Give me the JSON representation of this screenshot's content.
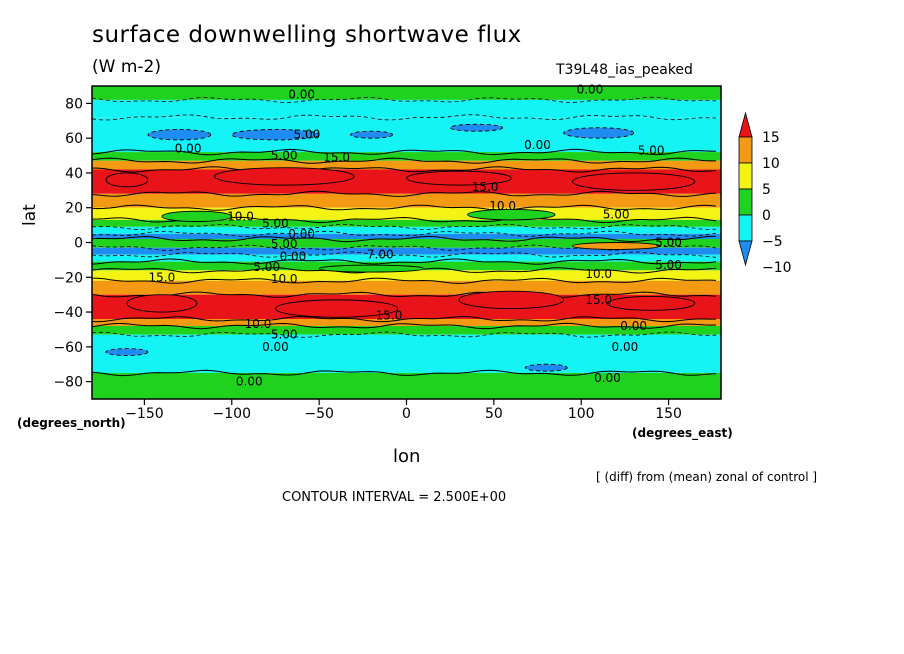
{
  "header": {
    "title": "surface downwelling shortwave flux",
    "units": "(W m-2)",
    "run_name": "T39L48_ias_peaked"
  },
  "footer": {
    "north_units": "(degrees_north)",
    "east_units": "(degrees_east)",
    "diff_note": "[ (diff) from (mean) zonal of control ]",
    "contour_interval": "CONTOUR INTERVAL = 2.500E+00"
  },
  "chart_data": {
    "type": "heatmap",
    "title": "surface downwelling shortwave flux",
    "subtitle": "(W m-2)",
    "xlabel": "lon",
    "ylabel": "lat",
    "xlim": [
      -180,
      180
    ],
    "ylim": [
      -90,
      90
    ],
    "x_ticks": [
      -150,
      -100,
      -50,
      0,
      50,
      100,
      150
    ],
    "x_tick_labels": [
      "−150",
      "−100",
      "−50",
      "0",
      "50",
      "100",
      "150"
    ],
    "y_ticks": [
      80,
      60,
      40,
      20,
      0,
      -20,
      -40,
      -60,
      -80
    ],
    "y_tick_labels": [
      "80",
      "60",
      "40",
      "20",
      "0",
      "−20",
      "−40",
      "−60",
      "−80"
    ],
    "contour_interval": 2.5,
    "colorbar": {
      "levels": [
        15,
        10,
        5,
        0,
        -5,
        -10
      ],
      "level_labels": [
        "15",
        "10",
        "5",
        "0",
        "−5",
        "−10"
      ],
      "colors": [
        "#e8141a",
        "#f49a12",
        "#f4f414",
        "#1ed21e",
        "#14f4f4",
        "#1e8cf0"
      ]
    },
    "colors": {
      "red": "#e8141a",
      "orange": "#f49a12",
      "yellow": "#f4f414",
      "green": "#1ed21e",
      "cyan": "#14f4f4",
      "blue": "#1e8cf0"
    },
    "zonal_bands": [
      {
        "lat_from": 90,
        "lat_to": 82,
        "value": 1
      },
      {
        "lat_from": 82,
        "lat_to": 72,
        "value": -2
      },
      {
        "lat_from": 72,
        "lat_to": 52,
        "value": -4
      },
      {
        "lat_from": 52,
        "lat_to": 47,
        "value": 1
      },
      {
        "lat_from": 47,
        "lat_to": 42,
        "value": 7
      },
      {
        "lat_from": 42,
        "lat_to": 28,
        "value": 12
      },
      {
        "lat_from": 28,
        "lat_to": 20,
        "value": 8
      },
      {
        "lat_from": 20,
        "lat_to": 13,
        "value": 6
      },
      {
        "lat_from": 13,
        "lat_to": 9,
        "value": 1
      },
      {
        "lat_from": 9,
        "lat_to": 5,
        "value": -3
      },
      {
        "lat_from": 5,
        "lat_to": 2,
        "value": -7
      },
      {
        "lat_from": 2,
        "lat_to": -3,
        "value": 1
      },
      {
        "lat_from": -3,
        "lat_to": -7,
        "value": -7
      },
      {
        "lat_from": -7,
        "lat_to": -11,
        "value": -2
      },
      {
        "lat_from": -11,
        "lat_to": -16,
        "value": 1
      },
      {
        "lat_from": -16,
        "lat_to": -22,
        "value": 6
      },
      {
        "lat_from": -22,
        "lat_to": -30,
        "value": 8
      },
      {
        "lat_from": -30,
        "lat_to": -44,
        "value": 12
      },
      {
        "lat_from": -44,
        "lat_to": -48,
        "value": 7
      },
      {
        "lat_from": -48,
        "lat_to": -53,
        "value": 1
      },
      {
        "lat_from": -53,
        "lat_to": -75,
        "value": -3
      },
      {
        "lat_from": -75,
        "lat_to": -90,
        "value": 1
      }
    ],
    "patches": [
      {
        "lon": -130,
        "lat": 62,
        "rx": 18,
        "ry": 3,
        "value": -7
      },
      {
        "lon": -75,
        "lat": 62,
        "rx": 25,
        "ry": 3,
        "value": -7
      },
      {
        "lon": -20,
        "lat": 62,
        "rx": 12,
        "ry": 2,
        "value": -7
      },
      {
        "lon": 40,
        "lat": 66,
        "rx": 15,
        "ry": 2,
        "value": -7
      },
      {
        "lon": 110,
        "lat": 63,
        "rx": 20,
        "ry": 3,
        "value": -7
      },
      {
        "lon": -160,
        "lat": 36,
        "rx": 12,
        "ry": 4,
        "value": 17
      },
      {
        "lon": -70,
        "lat": 38,
        "rx": 40,
        "ry": 5,
        "value": 17
      },
      {
        "lon": 30,
        "lat": 37,
        "rx": 30,
        "ry": 4,
        "value": 17
      },
      {
        "lon": 130,
        "lat": 35,
        "rx": 35,
        "ry": 5,
        "value": 17
      },
      {
        "lon": -120,
        "lat": 15,
        "rx": 20,
        "ry": 3,
        "value": 1
      },
      {
        "lon": 60,
        "lat": 16,
        "rx": 25,
        "ry": 3,
        "value": 1
      },
      {
        "lon": -140,
        "lat": -35,
        "rx": 20,
        "ry": 5,
        "value": 17
      },
      {
        "lon": -40,
        "lat": -38,
        "rx": 35,
        "ry": 5,
        "value": 17
      },
      {
        "lon": 60,
        "lat": -33,
        "rx": 30,
        "ry": 5,
        "value": 17
      },
      {
        "lon": 140,
        "lat": -35,
        "rx": 25,
        "ry": 4,
        "value": 17
      },
      {
        "lon": 120,
        "lat": -2,
        "rx": 25,
        "ry": 2,
        "value": 8
      },
      {
        "lon": -20,
        "lat": -15,
        "rx": 30,
        "ry": 2,
        "value": 1
      },
      {
        "lon": -160,
        "lat": -63,
        "rx": 12,
        "ry": 2,
        "value": -7
      },
      {
        "lon": 80,
        "lat": -72,
        "rx": 12,
        "ry": 2,
        "value": -7
      }
    ],
    "contour_labels": [
      {
        "lon": -60,
        "lat": 85,
        "text": "0.00"
      },
      {
        "lon": 105,
        "lat": 88,
        "text": "0.00"
      },
      {
        "lon": -57,
        "lat": 62,
        "text": "5.00"
      },
      {
        "lon": -125,
        "lat": 54,
        "text": "0.00"
      },
      {
        "lon": -70,
        "lat": 50,
        "text": "5.00"
      },
      {
        "lon": -40,
        "lat": 49,
        "text": "15.0"
      },
      {
        "lon": 75,
        "lat": 56,
        "text": "0.00"
      },
      {
        "lon": 140,
        "lat": 53,
        "text": "5.00"
      },
      {
        "lon": 45,
        "lat": 32,
        "text": "15.0"
      },
      {
        "lon": 55,
        "lat": 21,
        "text": "10.0"
      },
      {
        "lon": -95,
        "lat": 15,
        "text": "10.0"
      },
      {
        "lon": -75,
        "lat": 11,
        "text": "5.00"
      },
      {
        "lon": 120,
        "lat": 16,
        "text": "5.00"
      },
      {
        "lon": -60,
        "lat": 5,
        "text": "0.00"
      },
      {
        "lon": -70,
        "lat": -1,
        "text": "5.00"
      },
      {
        "lon": -65,
        "lat": -8,
        "text": "0.00"
      },
      {
        "lon": -15,
        "lat": -7,
        "text": "7.00"
      },
      {
        "lon": 150,
        "lat": 0,
        "text": "5.00"
      },
      {
        "lon": 150,
        "lat": -13,
        "text": "5.00"
      },
      {
        "lon": 110,
        "lat": -18,
        "text": "10.0"
      },
      {
        "lon": -140,
        "lat": -20,
        "text": "15.0"
      },
      {
        "lon": -80,
        "lat": -14,
        "text": "5.00"
      },
      {
        "lon": -70,
        "lat": -21,
        "text": "10.0"
      },
      {
        "lon": 110,
        "lat": -33,
        "text": "15.0"
      },
      {
        "lon": -10,
        "lat": -42,
        "text": "15.0"
      },
      {
        "lon": -85,
        "lat": -47,
        "text": "10.0"
      },
      {
        "lon": -70,
        "lat": -53,
        "text": "5.00"
      },
      {
        "lon": -75,
        "lat": -60,
        "text": "0.00"
      },
      {
        "lon": 130,
        "lat": -48,
        "text": "0.00"
      },
      {
        "lon": 125,
        "lat": -60,
        "text": "0.00"
      },
      {
        "lon": -90,
        "lat": -80,
        "text": "0.00"
      },
      {
        "lon": 115,
        "lat": -78,
        "text": "0.00"
      }
    ]
  }
}
